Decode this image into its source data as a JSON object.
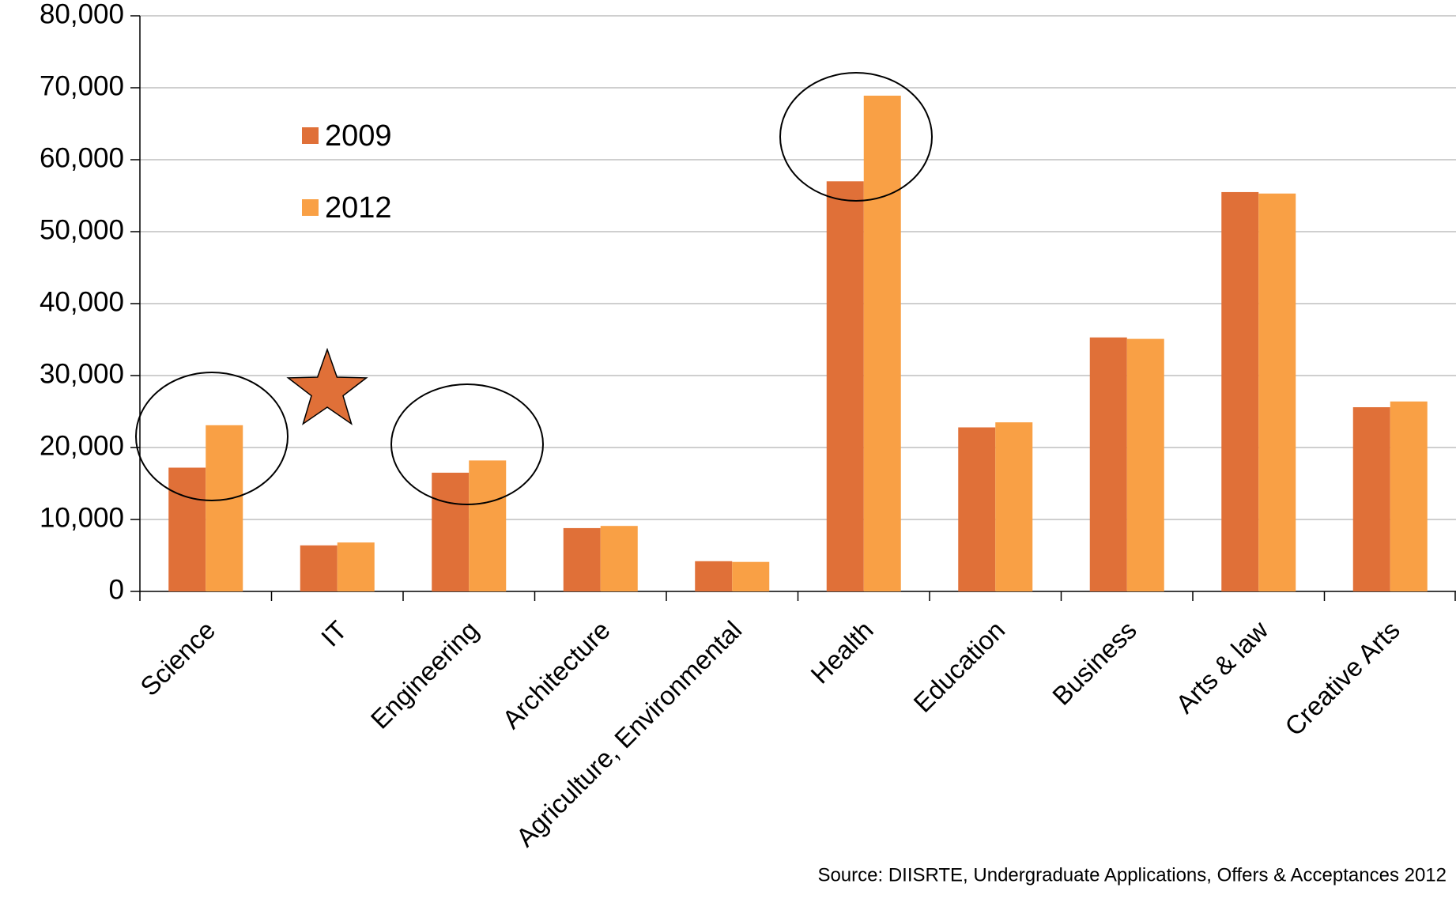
{
  "chart_data": {
    "type": "bar",
    "categories": [
      "Science",
      "IT",
      "Engineering",
      "Architecture",
      "Agriculture, Environmental",
      "Health",
      "Education",
      "Business",
      "Arts & law",
      "Creative Arts"
    ],
    "series": [
      {
        "name": "2009",
        "color": "#e07038",
        "values": [
          17200,
          6400,
          16500,
          8800,
          4200,
          57000,
          22800,
          35300,
          55500,
          25600
        ]
      },
      {
        "name": "2012",
        "color": "#f9a045",
        "values": [
          23100,
          6800,
          18200,
          9100,
          4100,
          68900,
          23500,
          35100,
          55300,
          26400
        ]
      }
    ],
    "ylim": [
      0,
      80000
    ],
    "yticks": [
      0,
      {
        "value": 10000,
        "label": "10,000"
      },
      {
        "value": 20000,
        "label": "20,000"
      },
      {
        "value": 30000,
        "label": "30,000"
      },
      {
        "value": 40000,
        "label": "40,000"
      },
      {
        "value": 50000,
        "label": "50,000"
      },
      {
        "value": 60000,
        "label": "60,000"
      },
      {
        "value": 70000,
        "label": "70,000"
      },
      {
        "value": 80000,
        "label": "80,000"
      }
    ],
    "grid": true,
    "legend": "upper left",
    "annotation": "Source: DIISRTE, Undergraduate Applications, Offers & Acceptances 2012"
  }
}
